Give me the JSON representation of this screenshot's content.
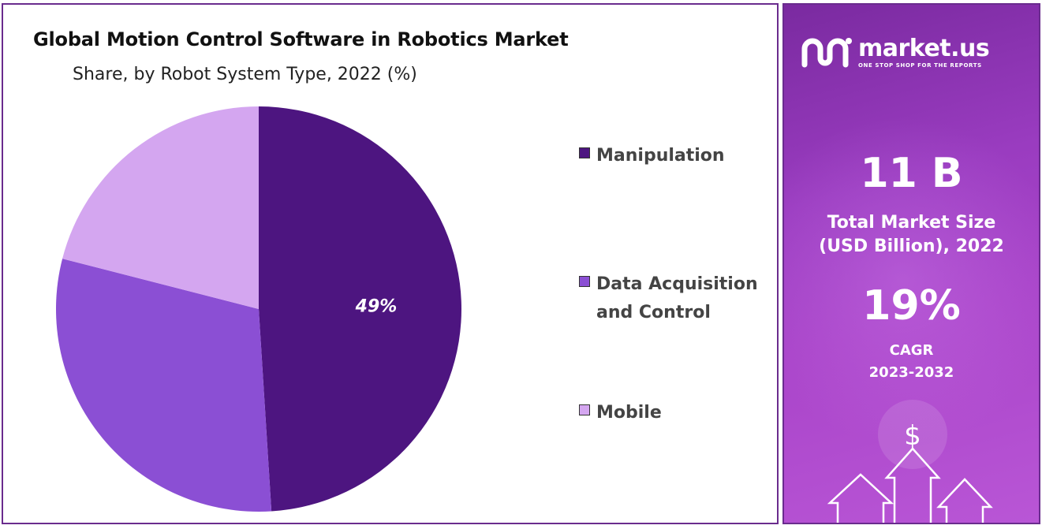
{
  "chart_data": {
    "type": "pie",
    "title": "Global Motion Control Software in Robotics Market",
    "subtitle": "Share, by Robot System Type, 2022 (%)",
    "categories": [
      "Manipulation",
      "Data Acquisition and Control",
      "Mobile"
    ],
    "values": [
      49,
      30,
      21
    ],
    "data_labels": [
      "49%",
      "",
      ""
    ],
    "colors": [
      "#4d1580",
      "#8b4fd4",
      "#d4a6f0"
    ],
    "legend_position": "right"
  },
  "legend": {
    "items": [
      {
        "label": "Manipulation",
        "color": "#4d1580"
      },
      {
        "label": "Data Acquisition and Control",
        "color": "#8b4fd4"
      },
      {
        "label": "Mobile",
        "color": "#d4a6f0"
      }
    ]
  },
  "sidebar": {
    "brand_name": "market.us",
    "brand_tagline": "ONE STOP SHOP FOR THE REPORTS",
    "market_size_value": "11 B",
    "market_size_caption_line1": "Total Market Size",
    "market_size_caption_line2": "(USD Billion), 2022",
    "cagr_value": "19%",
    "cagr_label": "CAGR",
    "cagr_period": "2023-2032",
    "dollar_symbol": "$"
  }
}
